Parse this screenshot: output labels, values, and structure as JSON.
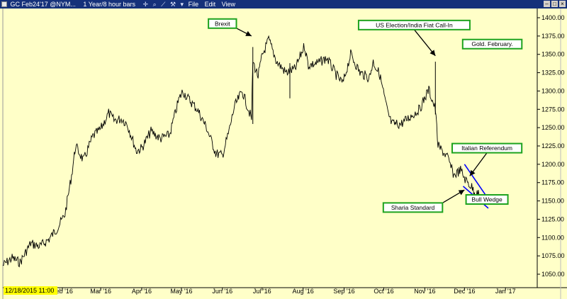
{
  "window": {
    "title": "GC Feb24'17 @NYM...",
    "timeframe": "1 Year/8 hour bars",
    "menu": [
      "File",
      "Edit",
      "View"
    ]
  },
  "colors": {
    "background": "#ffffc8",
    "price": "#000000",
    "wedge": "#0000ff",
    "callout_border": "#1ea31e",
    "date_box": "#ffff00"
  },
  "date_readout": "12/18/2015 11:00",
  "chart_data": {
    "type": "line",
    "title": "",
    "xlabel": "",
    "ylabel": "",
    "ylim": [
      1040,
      1410
    ],
    "yticks": [
      1050,
      1075,
      1100,
      1125,
      1150,
      1175,
      1200,
      1225,
      1250,
      1275,
      1300,
      1325,
      1350,
      1375,
      1400
    ],
    "xticks": [
      {
        "label": "Feb '16",
        "date": "2016-02-01"
      },
      {
        "label": "Mar '16",
        "date": "2016-03-01"
      },
      {
        "label": "Apr '16",
        "date": "2016-04-01"
      },
      {
        "label": "May '16",
        "date": "2016-05-01"
      },
      {
        "label": "Jun '16",
        "date": "2016-06-01"
      },
      {
        "label": "Jul '16",
        "date": "2016-07-01"
      },
      {
        "label": "Aug '16",
        "date": "2016-08-01"
      },
      {
        "label": "Sep '16",
        "date": "2016-09-01"
      },
      {
        "label": "Oct '16",
        "date": "2016-10-01"
      },
      {
        "label": "Nov '16",
        "date": "2016-11-01"
      },
      {
        "label": "Dec '16",
        "date": "2016-12-01"
      },
      {
        "label": "Jan '17",
        "date": "2017-01-01"
      }
    ],
    "xlim": [
      "2015-12-18",
      "2017-01-25"
    ],
    "grid": false,
    "series": [
      {
        "values": [
          [
            "2015-12-18",
            1062
          ],
          [
            "2015-12-25",
            1072
          ],
          [
            "2015-12-31",
            1066
          ],
          [
            "2016-01-08",
            1092
          ],
          [
            "2016-01-15",
            1088
          ],
          [
            "2016-01-22",
            1098
          ],
          [
            "2016-01-29",
            1115
          ],
          [
            "2016-02-03",
            1132
          ],
          [
            "2016-02-08",
            1185
          ],
          [
            "2016-02-11",
            1225
          ],
          [
            "2016-02-17",
            1205
          ],
          [
            "2016-02-24",
            1238
          ],
          [
            "2016-03-01",
            1248
          ],
          [
            "2016-03-07",
            1270
          ],
          [
            "2016-03-11",
            1260
          ],
          [
            "2016-03-17",
            1262
          ],
          [
            "2016-03-21",
            1255
          ],
          [
            "2016-03-28",
            1218
          ],
          [
            "2016-04-01",
            1222
          ],
          [
            "2016-04-08",
            1245
          ],
          [
            "2016-04-15",
            1235
          ],
          [
            "2016-04-22",
            1240
          ],
          [
            "2016-04-29",
            1288
          ],
          [
            "2016-05-02",
            1300
          ],
          [
            "2016-05-06",
            1290
          ],
          [
            "2016-05-13",
            1275
          ],
          [
            "2016-05-20",
            1250
          ],
          [
            "2016-05-27",
            1215
          ],
          [
            "2016-06-01",
            1212
          ],
          [
            "2016-06-06",
            1245
          ],
          [
            "2016-06-10",
            1278
          ],
          [
            "2016-06-16",
            1300
          ],
          [
            "2016-06-23",
            1262
          ],
          [
            "2016-06-24",
            1340
          ],
          [
            "2016-06-28",
            1320
          ],
          [
            "2016-07-01",
            1348
          ],
          [
            "2016-07-06",
            1370
          ],
          [
            "2016-07-12",
            1340
          ],
          [
            "2016-07-19",
            1325
          ],
          [
            "2016-07-26",
            1330
          ],
          [
            "2016-08-02",
            1362
          ],
          [
            "2016-08-05",
            1335
          ],
          [
            "2016-08-12",
            1338
          ],
          [
            "2016-08-19",
            1345
          ],
          [
            "2016-08-26",
            1322
          ],
          [
            "2016-08-31",
            1310
          ],
          [
            "2016-09-06",
            1350
          ],
          [
            "2016-09-13",
            1325
          ],
          [
            "2016-09-20",
            1318
          ],
          [
            "2016-09-23",
            1340
          ],
          [
            "2016-09-28",
            1322
          ],
          [
            "2016-10-04",
            1270
          ],
          [
            "2016-10-07",
            1255
          ],
          [
            "2016-10-14",
            1255
          ],
          [
            "2016-10-21",
            1265
          ],
          [
            "2016-10-28",
            1275
          ],
          [
            "2016-11-04",
            1302
          ],
          [
            "2016-11-09",
            1275
          ],
          [
            "2016-11-11",
            1225
          ],
          [
            "2016-11-18",
            1210
          ],
          [
            "2016-11-23",
            1185
          ],
          [
            "2016-11-28",
            1192
          ],
          [
            "2016-12-02",
            1178
          ],
          [
            "2016-12-06",
            1170
          ],
          [
            "2016-12-09",
            1162
          ],
          [
            "2016-12-12",
            1158
          ]
        ],
        "spikes": [
          {
            "date": "2016-06-24",
            "high": 1360,
            "low": 1255
          },
          {
            "date": "2016-07-22",
            "high": 1338,
            "low": 1290
          },
          {
            "date": "2016-11-09",
            "high": 1340,
            "low": 1268
          }
        ]
      }
    ],
    "wedge_lines": [
      [
        [
          "2016-12-01",
          1200
        ],
        [
          "2016-12-20",
          1150
        ]
      ],
      [
        [
          "2016-11-30",
          1170
        ],
        [
          "2016-12-19",
          1140
        ]
      ]
    ],
    "annotations": [
      {
        "id": "brexit",
        "text": "Brexit",
        "box_date": "2016-06-01",
        "box_value": 1392,
        "arrow_date": "2016-06-23",
        "arrow_value": 1375
      },
      {
        "id": "us-election",
        "text": "US Election/India Fiat Call-In",
        "box_date": "2016-10-24",
        "box_value": 1390,
        "arrow_date": "2016-11-09",
        "arrow_value": 1348
      },
      {
        "id": "gold-february",
        "text": "Gold. February.",
        "box_date": "2016-12-22",
        "box_value": 1364,
        "arrow_date": null,
        "arrow_value": null
      },
      {
        "id": "italian-referendum",
        "text": "Italian Referendum",
        "box_date": "2016-12-18",
        "box_value": 1222,
        "arrow_date": "2016-12-05",
        "arrow_value": 1184
      },
      {
        "id": "bull-wedge",
        "text": "Bull Wedge",
        "box_date": "2016-12-18",
        "box_value": 1152,
        "arrow_date": null,
        "arrow_value": null
      },
      {
        "id": "sharia-standard",
        "text": "Sharia Standard",
        "box_date": "2016-10-23",
        "box_value": 1141,
        "arrow_date": "2016-12-01",
        "arrow_value": 1165
      }
    ]
  }
}
